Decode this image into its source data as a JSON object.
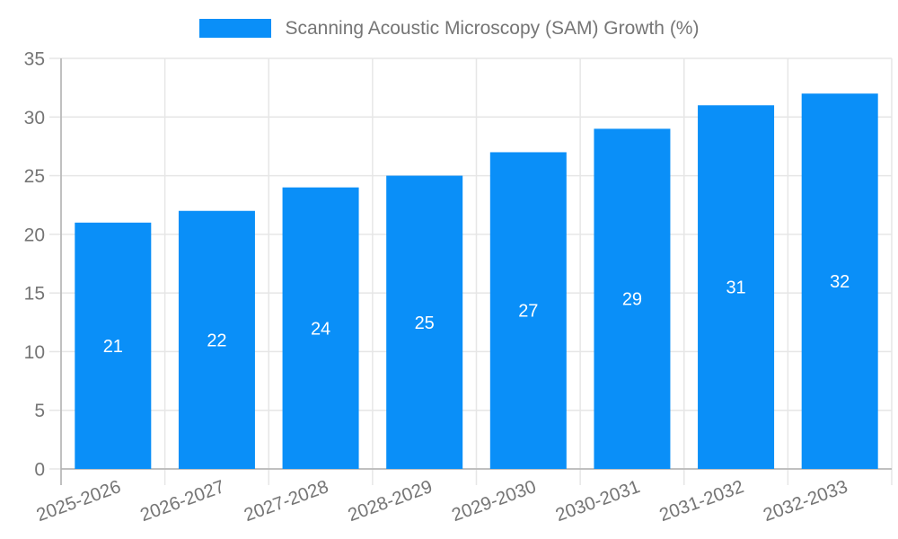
{
  "legend": {
    "label": "Scanning Acoustic Microscopy (SAM) Growth (%)"
  },
  "colors": {
    "bar": "#0a8ff8",
    "axis": "#b0b0b0",
    "grid": "#e6e6e6",
    "tick_label": "#757575",
    "value_label": "#ffffff",
    "legend_text": "#757575",
    "background": "#ffffff"
  },
  "chart_data": {
    "type": "bar",
    "title": "Scanning Acoustic Microscopy (SAM) Growth (%)",
    "categories": [
      "2025-2026",
      "2026-2027",
      "2027-2028",
      "2028-2029",
      "2029-2030",
      "2030-2031",
      "2031-2032",
      "2032-2033"
    ],
    "values": [
      21,
      22,
      24,
      25,
      27,
      29,
      31,
      32
    ],
    "value_labels": [
      "21",
      "22",
      "24",
      "25",
      "27",
      "29",
      "31",
      "32"
    ],
    "xlabel": "",
    "ylabel": "",
    "ylim": [
      0,
      35
    ],
    "ytick_step": 5,
    "ytick_labels": [
      "0",
      "5",
      "10",
      "15",
      "20",
      "25",
      "30",
      "35"
    ],
    "grid": true,
    "legend_position": "top",
    "value_label_position": "center-inside",
    "xtick_rotation_deg": -20
  }
}
